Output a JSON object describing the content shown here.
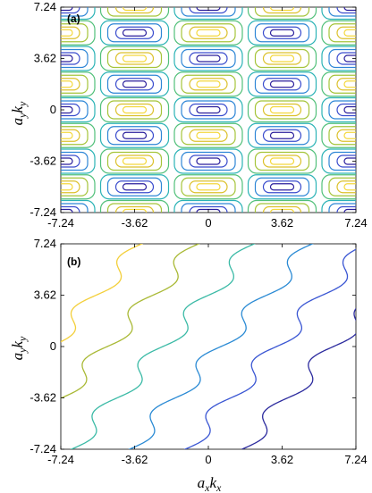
{
  "chart_data": [
    {
      "type": "contour",
      "panel_label": "(a)",
      "xlabel": "",
      "ylabel_base": "a",
      "ylabel_sub": "y",
      "ylabel_base2": "k",
      "ylabel_sub2": "y",
      "xlim": [
        -7.24,
        7.24
      ],
      "ylim": [
        -7.24,
        7.24
      ],
      "xticks": [
        "-7.24",
        "-3.62",
        "0",
        "3.62",
        "7.24"
      ],
      "yticks": [
        "-7.24",
        "-3.62",
        "0",
        "3.62",
        "7.24"
      ],
      "description_function": "alternating cells: blue minima at (±3.62k, ±1.81 odd) and yellow maxima offset",
      "contour_levels": [
        -0.8,
        -0.6,
        -0.3,
        0.0,
        0.3,
        0.6,
        0.8
      ],
      "colors": [
        "#3b1fa8",
        "#3e4fd0",
        "#2d8ad8",
        "#29b5a8",
        "#7ec448",
        "#d9c02b",
        "#f2d63a"
      ]
    },
    {
      "type": "line",
      "panel_label": "(b)",
      "xlabel_base": "a",
      "xlabel_sub": "x",
      "xlabel_base2": "k",
      "xlabel_sub2": "x",
      "ylabel_base": "a",
      "ylabel_sub": "y",
      "ylabel_base2": "k",
      "ylabel_sub2": "y",
      "xlim": [
        -7.24,
        7.24
      ],
      "ylim": [
        -7.24,
        7.24
      ],
      "xticks": [
        "-7.24",
        "-3.62",
        "0",
        "3.62",
        "7.24"
      ],
      "yticks": [
        "-7.24",
        "-3.62",
        "0",
        "3.62",
        "7.24"
      ],
      "series": [
        {
          "offset": 12.5,
          "color": "#f3cf3a"
        },
        {
          "offset": 8.0,
          "color": "#a9b935"
        },
        {
          "offset": 3.6,
          "color": "#3bbaa6"
        },
        {
          "offset": -1.0,
          "color": "#2a8ad4"
        },
        {
          "offset": -5.4,
          "color": "#3a56d3"
        },
        {
          "offset": -9.9,
          "color": "#2c2b9e"
        }
      ]
    }
  ]
}
